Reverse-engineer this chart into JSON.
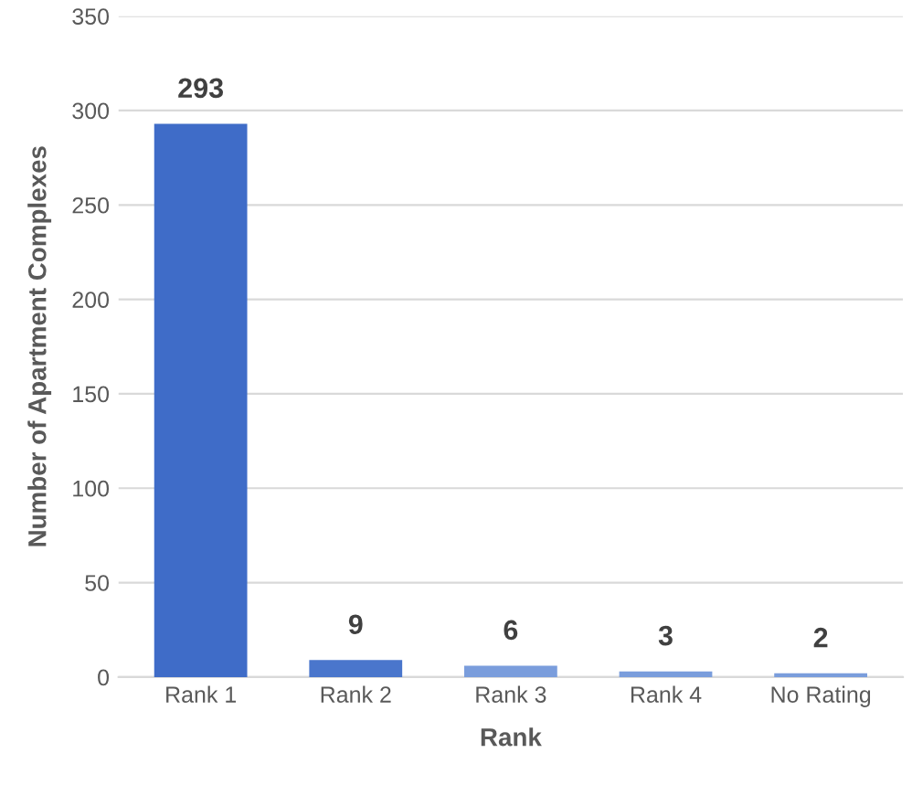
{
  "chart_data": {
    "type": "bar",
    "xlabel": "Rank",
    "ylabel": "Number of Apartment Complexes",
    "categories": [
      "Rank 1",
      "Rank 2",
      "Rank 3",
      "Rank 4",
      "No Rating"
    ],
    "values": [
      293,
      9,
      6,
      3,
      2
    ],
    "colors": [
      "#3f6cc8",
      "#4a76cc",
      "#7a9ddc",
      "#7a9ddc",
      "#7a9ddc"
    ],
    "ylim": [
      0,
      350
    ],
    "yticks": [
      0,
      50,
      100,
      150,
      200,
      250,
      300,
      350
    ],
    "grid": "y",
    "data_labels": true
  }
}
